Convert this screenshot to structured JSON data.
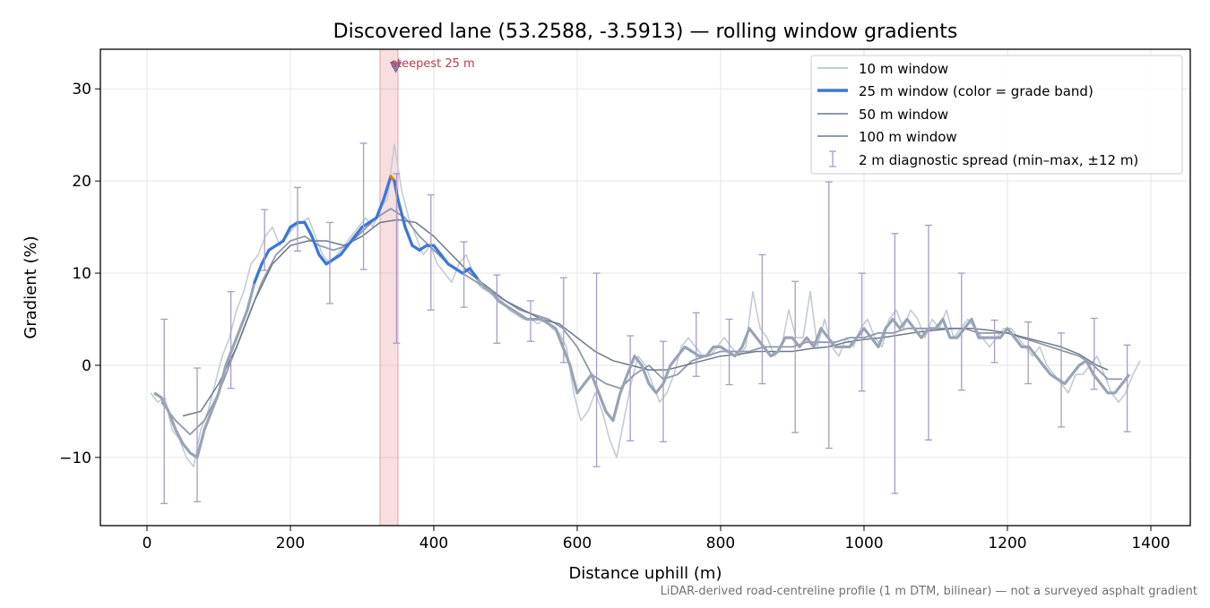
{
  "chart_data": {
    "type": "line",
    "title": "Discovered lane (53.2588, -3.5913) — rolling window gradients",
    "xlabel": "Distance uphill (m)",
    "ylabel": "Gradient (%)",
    "xlim": [
      -65,
      1455
    ],
    "ylim": [
      -17.4,
      34.3
    ],
    "xticks": [
      0,
      200,
      400,
      600,
      800,
      1000,
      1200,
      1400
    ],
    "yticks": [
      -10,
      0,
      10,
      20,
      30
    ],
    "xtick_labels": [
      "0",
      "200",
      "400",
      "600",
      "800",
      "1000",
      "1200",
      "1400"
    ],
    "ytick_labels": [
      "−10",
      "0",
      "10",
      "20",
      "30"
    ],
    "grid": true,
    "legend_position": "top-right",
    "footnote": "LiDAR-derived road-centreline profile (1 m DTM, bilinear) — not a surveyed asphalt gradient",
    "colors": {
      "w10": "#c3cbd6",
      "w25_band_blue": "#3a78d8",
      "w25_band_orange": "#e07b00",
      "w25_flat": "#98a4b4",
      "w50": "#8f99a8",
      "w100": "#6f7a88",
      "errorbar": "#a89cc4",
      "highlight": "#e8a0a8",
      "annotation": "#c0394b"
    },
    "legend": [
      {
        "label": "10 m window",
        "key": "w10"
      },
      {
        "label": "25 m window (color = grade band)",
        "key": "w25"
      },
      {
        "label": "50 m window",
        "key": "w50"
      },
      {
        "label": "100 m window",
        "key": "w100"
      },
      {
        "label": "2 m diagnostic spread (min–max, ±12 m)",
        "key": "err"
      }
    ],
    "steepest": {
      "label": "steepest 25 m",
      "x_start": 325,
      "x_end": 350,
      "marker_x": 347,
      "marker_y": 32.3
    },
    "series": [
      {
        "name": "10 m window",
        "key": "w10",
        "x": [
          5,
          15,
          25,
          35,
          45,
          55,
          65,
          75,
          85,
          95,
          105,
          115,
          125,
          135,
          145,
          155,
          165,
          175,
          185,
          195,
          205,
          215,
          225,
          235,
          245,
          255,
          265,
          275,
          285,
          295,
          305,
          315,
          325,
          335,
          345,
          355,
          365,
          375,
          385,
          395,
          405,
          415,
          425,
          435,
          445,
          455,
          465,
          475,
          485,
          495,
          505,
          515,
          525,
          535,
          545,
          555,
          565,
          575,
          585,
          595,
          605,
          615,
          625,
          635,
          645,
          655,
          665,
          675,
          685,
          695,
          705,
          715,
          725,
          735,
          745,
          755,
          765,
          775,
          785,
          795,
          805,
          815,
          825,
          835,
          845,
          855,
          865,
          875,
          885,
          895,
          905,
          915,
          925,
          935,
          945,
          955,
          965,
          975,
          985,
          995,
          1005,
          1015,
          1025,
          1035,
          1045,
          1055,
          1065,
          1075,
          1085,
          1095,
          1105,
          1115,
          1125,
          1135,
          1145,
          1155,
          1165,
          1175,
          1185,
          1195,
          1205,
          1215,
          1225,
          1235,
          1245,
          1255,
          1265,
          1275,
          1285,
          1295,
          1305,
          1315,
          1325,
          1335,
          1345,
          1355,
          1365,
          1375,
          1385
        ],
        "y": [
          -3,
          -4,
          -3.5,
          -7,
          -8,
          -10,
          -11,
          -7,
          -5,
          -2,
          1,
          3,
          6,
          8,
          11,
          12,
          14,
          15,
          13,
          14,
          15,
          15.5,
          16,
          14,
          12,
          11,
          12,
          13,
          14,
          15,
          16,
          15,
          17,
          18,
          24,
          19,
          16,
          14,
          12,
          13,
          11,
          10,
          9,
          11,
          12,
          10,
          8.5,
          8,
          7.5,
          7,
          6,
          5.5,
          5,
          5,
          4.5,
          5,
          4,
          3.5,
          2,
          -3,
          -6,
          -5,
          -3,
          -5,
          -8,
          -10,
          -6,
          -2,
          1,
          0,
          -2,
          -4,
          -3,
          -1,
          2,
          3,
          2,
          1,
          1,
          2,
          3,
          2,
          1,
          2,
          8,
          4,
          3,
          1,
          2,
          6,
          3,
          3,
          8,
          2,
          5,
          2,
          1,
          3,
          2,
          4,
          5,
          3,
          2,
          5,
          6,
          4,
          6,
          5,
          3,
          5,
          4,
          6,
          3,
          4,
          5,
          4,
          3,
          2,
          3,
          4,
          4,
          3,
          2,
          1,
          2,
          0,
          -1,
          -2,
          -3,
          -1,
          -1,
          0,
          1,
          -1,
          -3,
          -4,
          -3,
          -1,
          0.5
        ]
      },
      {
        "name": "25 m window",
        "key": "w25",
        "x": [
          10,
          20,
          30,
          40,
          50,
          60,
          70,
          80,
          90,
          100,
          110,
          120,
          130,
          140,
          150,
          160,
          170,
          180,
          190,
          200,
          210,
          220,
          230,
          240,
          250,
          260,
          270,
          280,
          290,
          300,
          310,
          320,
          330,
          340,
          345,
          350,
          360,
          370,
          380,
          390,
          400,
          410,
          420,
          430,
          440,
          450,
          460,
          470,
          480,
          490,
          500,
          510,
          520,
          530,
          540,
          550,
          560,
          570,
          580,
          590,
          600,
          610,
          620,
          630,
          640,
          650,
          660,
          670,
          680,
          690,
          700,
          710,
          720,
          730,
          740,
          750,
          760,
          770,
          780,
          790,
          800,
          810,
          820,
          830,
          840,
          850,
          860,
          870,
          880,
          890,
          900,
          910,
          920,
          930,
          940,
          950,
          960,
          970,
          980,
          990,
          1000,
          1010,
          1020,
          1030,
          1040,
          1050,
          1060,
          1070,
          1080,
          1090,
          1100,
          1110,
          1120,
          1130,
          1140,
          1150,
          1160,
          1170,
          1180,
          1190,
          1200,
          1210,
          1220,
          1230,
          1240,
          1250,
          1260,
          1270,
          1280,
          1290,
          1300,
          1310,
          1320,
          1330,
          1340,
          1350,
          1360,
          1370
        ],
        "y": [
          -3,
          -3.5,
          -5,
          -7,
          -8.5,
          -9.5,
          -10,
          -7,
          -5,
          -3,
          0,
          2,
          4,
          6,
          9,
          11,
          12.5,
          13,
          13.5,
          15,
          15.5,
          15.5,
          14,
          12,
          11,
          11.5,
          12,
          13,
          14,
          15,
          15.5,
          16,
          18,
          20.5,
          20,
          18,
          15,
          13,
          12.5,
          13,
          13,
          12,
          11,
          10.5,
          10,
          10.5,
          9.5,
          8.5,
          8,
          7,
          6.5,
          6,
          5.5,
          5,
          5,
          5,
          4.5,
          4,
          2,
          0,
          -3,
          -2,
          -1,
          -3,
          -5,
          -6,
          -3,
          -1,
          1,
          0,
          -2,
          -3,
          -2,
          0,
          1,
          2,
          1.5,
          1,
          1,
          2,
          2,
          1.5,
          1,
          2,
          4,
          3,
          2,
          1,
          1.5,
          3,
          3,
          2,
          3,
          2,
          4,
          3,
          2,
          2,
          2,
          3,
          4,
          3,
          2,
          4,
          5,
          4,
          5,
          4,
          3,
          4,
          4,
          5,
          3,
          3,
          4,
          5,
          3,
          3,
          3,
          3,
          4,
          3,
          2,
          2,
          1,
          0,
          -1,
          -1.5,
          -2,
          -1,
          0,
          0.5,
          -1,
          -2,
          -3,
          -3,
          -2,
          -1
        ]
      },
      {
        "name": "50 m window",
        "key": "w50",
        "x": [
          20,
          40,
          60,
          80,
          100,
          120,
          140,
          160,
          180,
          200,
          220,
          240,
          260,
          280,
          300,
          320,
          340,
          360,
          380,
          400,
          420,
          440,
          460,
          480,
          500,
          520,
          540,
          560,
          580,
          600,
          620,
          640,
          660,
          680,
          700,
          720,
          740,
          760,
          780,
          800,
          820,
          840,
          860,
          880,
          900,
          920,
          940,
          960,
          980,
          1000,
          1020,
          1040,
          1060,
          1080,
          1100,
          1120,
          1140,
          1160,
          1180,
          1200,
          1220,
          1240,
          1260,
          1280,
          1300,
          1320,
          1340,
          1360
        ],
        "y": [
          -4,
          -6,
          -7.5,
          -6,
          -3,
          1,
          5,
          9,
          12,
          13.5,
          14,
          13,
          12.5,
          13,
          14.5,
          16,
          17,
          16,
          14,
          12.5,
          11,
          10,
          9,
          8,
          7,
          6,
          5.5,
          5,
          4,
          2,
          -1,
          -2,
          -2.5,
          -1,
          0,
          -1.5,
          -1,
          0.5,
          1,
          1.5,
          1.5,
          1.5,
          2,
          2,
          2,
          2.5,
          2.5,
          2.5,
          3,
          3,
          3.5,
          3.5,
          4,
          4,
          4,
          4,
          4,
          3.5,
          3.5,
          3.5,
          3,
          2.5,
          2,
          1.5,
          1,
          0,
          -1.5,
          -1.5
        ]
      },
      {
        "name": "100 m window",
        "key": "w100",
        "x": [
          50,
          75,
          100,
          125,
          150,
          175,
          200,
          225,
          250,
          275,
          300,
          325,
          350,
          375,
          400,
          425,
          450,
          475,
          500,
          525,
          550,
          575,
          600,
          625,
          650,
          675,
          700,
          725,
          750,
          775,
          800,
          825,
          850,
          875,
          900,
          925,
          950,
          975,
          1000,
          1025,
          1050,
          1075,
          1100,
          1125,
          1150,
          1175,
          1200,
          1225,
          1250,
          1275,
          1300,
          1325,
          1340
        ],
        "y": [
          -5.5,
          -5,
          -2,
          2,
          7,
          11,
          13,
          13.5,
          13.5,
          13,
          14,
          15.5,
          15.8,
          15.5,
          14,
          12,
          10,
          8.5,
          7,
          6,
          5,
          4.5,
          3,
          1.5,
          0.5,
          0,
          -0.5,
          -0.5,
          0,
          0.5,
          1,
          1.2,
          1.5,
          1.5,
          1.5,
          1.8,
          2,
          2.5,
          2.8,
          3,
          3.3,
          3.6,
          3.8,
          4,
          4,
          3.8,
          3.5,
          3,
          2.5,
          2,
          1.2,
          0,
          -0.5
        ]
      }
    ],
    "errorbars": [
      {
        "x": 24,
        "min": -15,
        "max": 5
      },
      {
        "x": 70,
        "min": -14.8,
        "max": -0.3
      },
      {
        "x": 117,
        "min": -2.5,
        "max": 8
      },
      {
        "x": 164,
        "min": 10.3,
        "max": 16.9
      },
      {
        "x": 210,
        "min": 12.4,
        "max": 19.3
      },
      {
        "x": 255,
        "min": 6.7,
        "max": 15.5
      },
      {
        "x": 302,
        "min": 10.4,
        "max": 24.1
      },
      {
        "x": 348,
        "min": 2.4,
        "max": 20.8
      },
      {
        "x": 396,
        "min": 6,
        "max": 18.5
      },
      {
        "x": 442,
        "min": 6.3,
        "max": 13.4
      },
      {
        "x": 488,
        "min": 2.4,
        "max": 9.8
      },
      {
        "x": 535,
        "min": 2.6,
        "max": 7
      },
      {
        "x": 581,
        "min": 0.3,
        "max": 9.5
      },
      {
        "x": 627,
        "min": -11,
        "max": 10
      },
      {
        "x": 674,
        "min": -8.2,
        "max": 3.2
      },
      {
        "x": 720,
        "min": -8.3,
        "max": 2.6
      },
      {
        "x": 766,
        "min": -1.2,
        "max": 5.7
      },
      {
        "x": 812,
        "min": -2.1,
        "max": 5
      },
      {
        "x": 858,
        "min": -2,
        "max": 12
      },
      {
        "x": 904,
        "min": -7.3,
        "max": 9.1
      },
      {
        "x": 951,
        "min": -9,
        "max": 19.9
      },
      {
        "x": 997,
        "min": -2.8,
        "max": 10
      },
      {
        "x": 1043,
        "min": -13.9,
        "max": 14.3
      },
      {
        "x": 1090,
        "min": -8.1,
        "max": 15.2
      },
      {
        "x": 1136,
        "min": -2.7,
        "max": 10
      },
      {
        "x": 1182,
        "min": 0.3,
        "max": 4.9
      },
      {
        "x": 1229,
        "min": -2,
        "max": 4.7
      },
      {
        "x": 1275,
        "min": -6.7,
        "max": 3.5
      },
      {
        "x": 1321,
        "min": -2.6,
        "max": 5.1
      },
      {
        "x": 1367,
        "min": -7.2,
        "max": 2.2
      }
    ]
  }
}
